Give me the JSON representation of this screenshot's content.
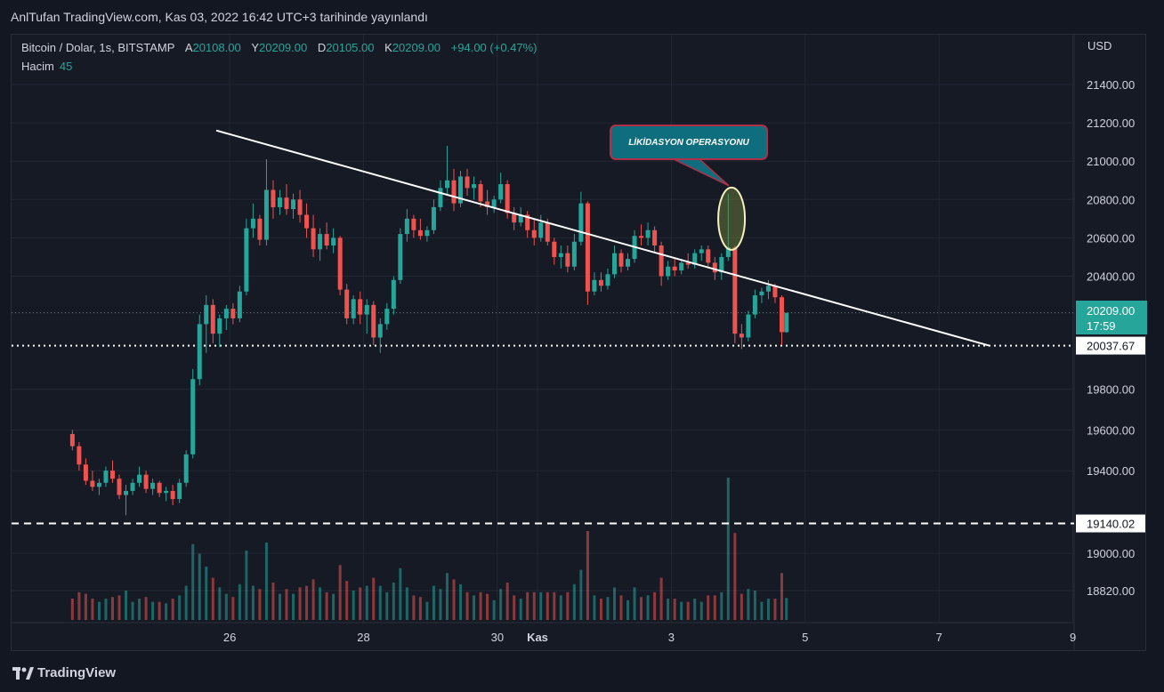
{
  "header": {
    "published_text": "AnlTufan TradingView.com, Kas 03, 2022 16:42 UTC+3 tarihinde yayınlandı"
  },
  "legend": {
    "symbol": "Bitcoin / Dolar, 1s, BITSTAMP",
    "open_label": "A",
    "open": "20108.00",
    "high_label": "Y",
    "high": "20209.00",
    "low_label": "D",
    "low": "20105.00",
    "close_label": "K",
    "close": "20209.00",
    "change": "+94.00 (+0.47%)",
    "volume_label": "Hacim",
    "volume": "45"
  },
  "footer": {
    "brand": "TradingView"
  },
  "colors": {
    "up": "#26a69a",
    "down": "#ef5350",
    "background": "#161a25",
    "grid": "#232733",
    "trendline": "#ffffff",
    "annotation_fill": "#0e6e7e",
    "annotation_border": "#b0304a"
  },
  "chart_data": {
    "type": "candlestick",
    "currency_label": "USD",
    "y_axis_ticks": [
      "21400.00",
      "21200.00",
      "21000.00",
      "20800.00",
      "20600.00",
      "20400.00",
      "19800.00",
      "19600.00",
      "19400.00",
      "19000.00",
      "18820.00"
    ],
    "x_axis_ticks": [
      "26",
      "28",
      "30",
      "Kas",
      "3",
      "5",
      "7",
      "9"
    ],
    "price_labels": [
      {
        "value": "20209.00",
        "time": "17:59",
        "style": "current"
      },
      {
        "value": "20037.67",
        "style": "support-dotted"
      },
      {
        "value": "19140.02",
        "style": "support-dashed"
      }
    ],
    "annotation": {
      "text": "LİKİDASYON OPERASYONU",
      "target_price": 20700,
      "target_day": 2.9
    },
    "trendline": {
      "start": {
        "day": -4.8,
        "price": 21160
      },
      "end": {
        "day": 6.75,
        "price": 20037.67
      }
    },
    "support_levels": [
      20037.67,
      19140.02
    ],
    "candles": [
      {
        "d": -6.95,
        "o": 19580,
        "h": 19600,
        "l": 19500,
        "c": 19520
      },
      {
        "d": -6.85,
        "o": 19520,
        "h": 19540,
        "l": 19400,
        "c": 19430
      },
      {
        "d": -6.75,
        "o": 19430,
        "h": 19460,
        "l": 19330,
        "c": 19350
      },
      {
        "d": -6.65,
        "o": 19350,
        "h": 19400,
        "l": 19300,
        "c": 19320
      },
      {
        "d": -6.55,
        "o": 19320,
        "h": 19360,
        "l": 19280,
        "c": 19340
      },
      {
        "d": -6.45,
        "o": 19340,
        "h": 19420,
        "l": 19320,
        "c": 19400
      },
      {
        "d": -6.35,
        "o": 19400,
        "h": 19450,
        "l": 19340,
        "c": 19360
      },
      {
        "d": -6.25,
        "o": 19360,
        "h": 19380,
        "l": 19260,
        "c": 19280
      },
      {
        "d": -6.15,
        "o": 19280,
        "h": 19330,
        "l": 19180,
        "c": 19300
      },
      {
        "d": -6.05,
        "o": 19300,
        "h": 19360,
        "l": 19280,
        "c": 19340
      },
      {
        "d": -5.95,
        "o": 19340,
        "h": 19420,
        "l": 19320,
        "c": 19380
      },
      {
        "d": -5.85,
        "o": 19380,
        "h": 19400,
        "l": 19290,
        "c": 19310
      },
      {
        "d": -5.75,
        "o": 19310,
        "h": 19360,
        "l": 19280,
        "c": 19340
      },
      {
        "d": -5.65,
        "o": 19340,
        "h": 19350,
        "l": 19270,
        "c": 19290
      },
      {
        "d": -5.55,
        "o": 19290,
        "h": 19320,
        "l": 19250,
        "c": 19300
      },
      {
        "d": -5.45,
        "o": 19300,
        "h": 19330,
        "l": 19230,
        "c": 19260
      },
      {
        "d": -5.35,
        "o": 19260,
        "h": 19360,
        "l": 19240,
        "c": 19340
      },
      {
        "d": -5.25,
        "o": 19340,
        "h": 19500,
        "l": 19320,
        "c": 19480
      },
      {
        "d": -5.15,
        "o": 19480,
        "h": 19900,
        "l": 19460,
        "c": 19850
      },
      {
        "d": -5.05,
        "o": 19850,
        "h": 20200,
        "l": 19820,
        "c": 20150
      },
      {
        "d": -4.95,
        "o": 20150,
        "h": 20300,
        "l": 20000,
        "c": 20250
      },
      {
        "d": -4.85,
        "o": 20250,
        "h": 20280,
        "l": 20050,
        "c": 20100
      },
      {
        "d": -4.75,
        "o": 20100,
        "h": 20200,
        "l": 20030,
        "c": 20180
      },
      {
        "d": -4.65,
        "o": 20180,
        "h": 20250,
        "l": 20120,
        "c": 20230
      },
      {
        "d": -4.55,
        "o": 20230,
        "h": 20260,
        "l": 20150,
        "c": 20180
      },
      {
        "d": -4.45,
        "o": 20180,
        "h": 20350,
        "l": 20160,
        "c": 20320
      },
      {
        "d": -4.35,
        "o": 20320,
        "h": 20700,
        "l": 20300,
        "c": 20650
      },
      {
        "d": -4.25,
        "o": 20650,
        "h": 20780,
        "l": 20600,
        "c": 20700
      },
      {
        "d": -4.15,
        "o": 20700,
        "h": 20720,
        "l": 20560,
        "c": 20590
      },
      {
        "d": -4.05,
        "o": 20590,
        "h": 21010,
        "l": 20560,
        "c": 20850
      },
      {
        "d": -3.95,
        "o": 20850,
        "h": 20900,
        "l": 20700,
        "c": 20760
      },
      {
        "d": -3.85,
        "o": 20760,
        "h": 20850,
        "l": 20720,
        "c": 20810
      },
      {
        "d": -3.75,
        "o": 20810,
        "h": 20880,
        "l": 20720,
        "c": 20750
      },
      {
        "d": -3.65,
        "o": 20750,
        "h": 20830,
        "l": 20700,
        "c": 20800
      },
      {
        "d": -3.55,
        "o": 20800,
        "h": 20850,
        "l": 20680,
        "c": 20720
      },
      {
        "d": -3.45,
        "o": 20720,
        "h": 20780,
        "l": 20600,
        "c": 20650
      },
      {
        "d": -3.35,
        "o": 20650,
        "h": 20720,
        "l": 20500,
        "c": 20540
      },
      {
        "d": -3.25,
        "o": 20540,
        "h": 20650,
        "l": 20480,
        "c": 20620
      },
      {
        "d": -3.15,
        "o": 20620,
        "h": 20680,
        "l": 20540,
        "c": 20560
      },
      {
        "d": -3.05,
        "o": 20560,
        "h": 20650,
        "l": 20520,
        "c": 20600
      },
      {
        "d": -2.95,
        "o": 20600,
        "h": 20610,
        "l": 20300,
        "c": 20330
      },
      {
        "d": -2.85,
        "o": 20330,
        "h": 20360,
        "l": 20150,
        "c": 20180
      },
      {
        "d": -2.75,
        "o": 20180,
        "h": 20300,
        "l": 20150,
        "c": 20280
      },
      {
        "d": -2.65,
        "o": 20280,
        "h": 20320,
        "l": 20150,
        "c": 20200
      },
      {
        "d": -2.55,
        "o": 20200,
        "h": 20280,
        "l": 20100,
        "c": 20250
      },
      {
        "d": -2.45,
        "o": 20250,
        "h": 20270,
        "l": 20040,
        "c": 20080
      },
      {
        "d": -2.35,
        "o": 20080,
        "h": 20180,
        "l": 20000,
        "c": 20150
      },
      {
        "d": -2.25,
        "o": 20150,
        "h": 20260,
        "l": 20120,
        "c": 20230
      },
      {
        "d": -2.15,
        "o": 20230,
        "h": 20400,
        "l": 20200,
        "c": 20380
      },
      {
        "d": -2.05,
        "o": 20380,
        "h": 20650,
        "l": 20360,
        "c": 20620
      },
      {
        "d": -1.95,
        "o": 20620,
        "h": 20750,
        "l": 20580,
        "c": 20700
      },
      {
        "d": -1.85,
        "o": 20700,
        "h": 20720,
        "l": 20600,
        "c": 20640
      },
      {
        "d": -1.75,
        "o": 20640,
        "h": 20700,
        "l": 20590,
        "c": 20610
      },
      {
        "d": -1.65,
        "o": 20610,
        "h": 20660,
        "l": 20580,
        "c": 20640
      },
      {
        "d": -1.55,
        "o": 20640,
        "h": 20800,
        "l": 20620,
        "c": 20760
      },
      {
        "d": -1.45,
        "o": 20760,
        "h": 20900,
        "l": 20740,
        "c": 20860
      },
      {
        "d": -1.35,
        "o": 20860,
        "h": 21080,
        "l": 20820,
        "c": 20900
      },
      {
        "d": -1.25,
        "o": 20900,
        "h": 20960,
        "l": 20740,
        "c": 20780
      },
      {
        "d": -1.15,
        "o": 20780,
        "h": 20950,
        "l": 20760,
        "c": 20920
      },
      {
        "d": -1.05,
        "o": 20920,
        "h": 20960,
        "l": 20820,
        "c": 20860
      },
      {
        "d": -0.95,
        "o": 20860,
        "h": 20920,
        "l": 20800,
        "c": 20880
      },
      {
        "d": -0.85,
        "o": 20880,
        "h": 20900,
        "l": 20760,
        "c": 20790
      },
      {
        "d": -0.75,
        "o": 20790,
        "h": 20850,
        "l": 20720,
        "c": 20760
      },
      {
        "d": -0.65,
        "o": 20760,
        "h": 20820,
        "l": 20730,
        "c": 20800
      },
      {
        "d": -0.55,
        "o": 20800,
        "h": 20940,
        "l": 20780,
        "c": 20880
      },
      {
        "d": -0.45,
        "o": 20880,
        "h": 20900,
        "l": 20700,
        "c": 20730
      },
      {
        "d": -0.35,
        "o": 20730,
        "h": 20760,
        "l": 20640,
        "c": 20680
      },
      {
        "d": -0.25,
        "o": 20680,
        "h": 20760,
        "l": 20660,
        "c": 20720
      },
      {
        "d": -0.15,
        "o": 20720,
        "h": 20740,
        "l": 20600,
        "c": 20640
      },
      {
        "d": -0.05,
        "o": 20640,
        "h": 20700,
        "l": 20560,
        "c": 20600
      },
      {
        "d": 0.05,
        "o": 20600,
        "h": 20720,
        "l": 20580,
        "c": 20680
      },
      {
        "d": 0.15,
        "o": 20680,
        "h": 20700,
        "l": 20560,
        "c": 20580
      },
      {
        "d": 0.25,
        "o": 20580,
        "h": 20600,
        "l": 20460,
        "c": 20500
      },
      {
        "d": 0.35,
        "o": 20500,
        "h": 20560,
        "l": 20440,
        "c": 20520
      },
      {
        "d": 0.45,
        "o": 20520,
        "h": 20560,
        "l": 20420,
        "c": 20450
      },
      {
        "d": 0.55,
        "o": 20450,
        "h": 20620,
        "l": 20430,
        "c": 20580
      },
      {
        "d": 0.65,
        "o": 20580,
        "h": 20840,
        "l": 20560,
        "c": 20780
      },
      {
        "d": 0.75,
        "o": 20780,
        "h": 20790,
        "l": 20250,
        "c": 20320
      },
      {
        "d": 0.85,
        "o": 20320,
        "h": 20420,
        "l": 20300,
        "c": 20380
      },
      {
        "d": 0.95,
        "o": 20380,
        "h": 20420,
        "l": 20320,
        "c": 20350
      },
      {
        "d": 1.05,
        "o": 20350,
        "h": 20440,
        "l": 20330,
        "c": 20410
      },
      {
        "d": 1.15,
        "o": 20410,
        "h": 20560,
        "l": 20390,
        "c": 20520
      },
      {
        "d": 1.25,
        "o": 20520,
        "h": 20540,
        "l": 20420,
        "c": 20450
      },
      {
        "d": 1.35,
        "o": 20450,
        "h": 20520,
        "l": 20430,
        "c": 20490
      },
      {
        "d": 1.45,
        "o": 20490,
        "h": 20640,
        "l": 20470,
        "c": 20610
      },
      {
        "d": 1.55,
        "o": 20610,
        "h": 20670,
        "l": 20560,
        "c": 20600
      },
      {
        "d": 1.65,
        "o": 20600,
        "h": 20680,
        "l": 20560,
        "c": 20640
      },
      {
        "d": 1.75,
        "o": 20640,
        "h": 20660,
        "l": 20520,
        "c": 20560
      },
      {
        "d": 1.85,
        "o": 20560,
        "h": 20580,
        "l": 20350,
        "c": 20400
      },
      {
        "d": 1.95,
        "o": 20400,
        "h": 20480,
        "l": 20380,
        "c": 20450
      },
      {
        "d": 2.05,
        "o": 20450,
        "h": 20500,
        "l": 20400,
        "c": 20430
      },
      {
        "d": 2.15,
        "o": 20430,
        "h": 20490,
        "l": 20410,
        "c": 20470
      },
      {
        "d": 2.25,
        "o": 20470,
        "h": 20520,
        "l": 20440,
        "c": 20460
      },
      {
        "d": 2.35,
        "o": 20460,
        "h": 20540,
        "l": 20440,
        "c": 20520
      },
      {
        "d": 2.45,
        "o": 20520,
        "h": 20560,
        "l": 20480,
        "c": 20540
      },
      {
        "d": 2.55,
        "o": 20540,
        "h": 20560,
        "l": 20440,
        "c": 20470
      },
      {
        "d": 2.65,
        "o": 20470,
        "h": 20500,
        "l": 20380,
        "c": 20420
      },
      {
        "d": 2.75,
        "o": 20420,
        "h": 20520,
        "l": 20380,
        "c": 20500
      },
      {
        "d": 2.85,
        "o": 20500,
        "h": 20830,
        "l": 20480,
        "c": 20550
      },
      {
        "d": 2.95,
        "o": 20550,
        "h": 20560,
        "l": 20050,
        "c": 20100
      },
      {
        "d": 3.05,
        "o": 20100,
        "h": 20150,
        "l": 20020,
        "c": 20080
      },
      {
        "d": 3.15,
        "o": 20080,
        "h": 20220,
        "l": 20060,
        "c": 20200
      },
      {
        "d": 3.25,
        "o": 20200,
        "h": 20330,
        "l": 20180,
        "c": 20300
      },
      {
        "d": 3.35,
        "o": 20300,
        "h": 20340,
        "l": 20260,
        "c": 20320
      },
      {
        "d": 3.45,
        "o": 20320,
        "h": 20380,
        "l": 20280,
        "c": 20350
      },
      {
        "d": 3.55,
        "o": 20350,
        "h": 20360,
        "l": 20260,
        "c": 20290
      },
      {
        "d": 3.65,
        "o": 20290,
        "h": 20300,
        "l": 20040,
        "c": 20108
      },
      {
        "d": 3.72,
        "o": 20108,
        "h": 20209,
        "l": 20105,
        "c": 20209
      }
    ]
  }
}
